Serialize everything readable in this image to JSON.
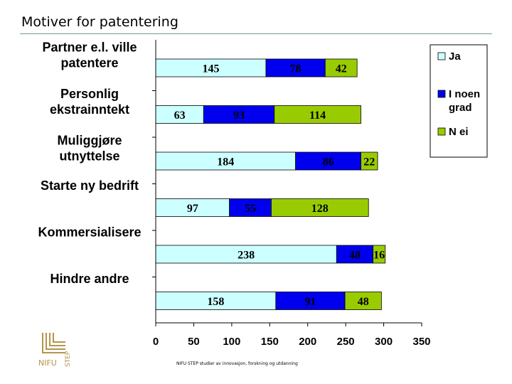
{
  "slide": {
    "title": "Motiver for patentering",
    "footer": "NIFU STEP studier av innovasjon, forskning og utdanning",
    "logo_text_left": "NIFU",
    "logo_text_right": "STEP"
  },
  "colors": {
    "ja": "#ccffff",
    "i_noen_grad": "#0000ee",
    "nei": "#99cc00",
    "logo": "#b5954a"
  },
  "chart_data": {
    "type": "bar",
    "orientation": "horizontal",
    "stacked": true,
    "categories": [
      [
        "Partner e.l. ville",
        "patentere"
      ],
      [
        "Personlig",
        "ekstrainntekt"
      ],
      [
        "Muliggjøre",
        "utnyttelse"
      ],
      [
        "Starte ny bedrift"
      ],
      [
        "Kommersialisere"
      ],
      [
        "Hindre andre"
      ]
    ],
    "series": [
      {
        "name": "Ja",
        "color": "#ccffff",
        "values": [
          145,
          63,
          184,
          97,
          238,
          158
        ]
      },
      {
        "name": "I noen grad",
        "color": "#0000ee",
        "values": [
          78,
          93,
          86,
          55,
          48,
          91
        ]
      },
      {
        "name": "N ei",
        "color": "#99cc00",
        "values": [
          42,
          114,
          22,
          128,
          16,
          48
        ]
      }
    ],
    "legend": [
      {
        "label": [
          "Ja"
        ],
        "color": "#ccffff"
      },
      {
        "label": [
          "I noen",
          "grad"
        ],
        "color": "#0000ee"
      },
      {
        "label": [
          "N ei"
        ],
        "color": "#99cc00"
      }
    ],
    "xlim": [
      0,
      350
    ],
    "xticks": [
      0,
      50,
      100,
      150,
      200,
      250,
      300,
      350
    ],
    "grid": false,
    "legend_position": "top-right"
  }
}
